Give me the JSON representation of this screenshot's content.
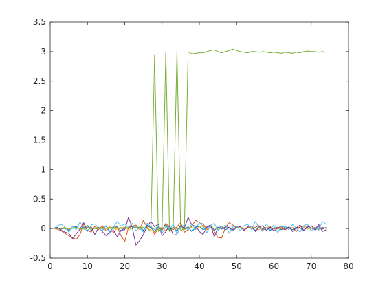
{
  "chart_data": {
    "type": "line",
    "title": "",
    "xlabel": "",
    "ylabel": "",
    "xlim": [
      0,
      80
    ],
    "ylim": [
      -0.5,
      3.5
    ],
    "xticks": [
      0,
      10,
      20,
      30,
      40,
      50,
      60,
      70,
      80
    ],
    "yticks": [
      -0.5,
      0,
      0.5,
      1,
      1.5,
      2,
      2.5,
      3,
      3.5
    ],
    "xtick_labels": [
      "0",
      "10",
      "20",
      "30",
      "40",
      "50",
      "60",
      "70",
      "80"
    ],
    "ytick_labels": [
      "-0.5",
      "0",
      "0.5",
      "1",
      "1.5",
      "2",
      "2.5",
      "3",
      "3.5"
    ],
    "grid": false,
    "legend": "none",
    "series": [
      {
        "color": "#0072bd",
        "x": [
          1,
          2,
          3,
          4,
          5,
          6,
          7,
          8,
          9,
          10,
          11,
          12,
          13,
          14,
          15,
          16,
          17,
          18,
          19,
          20,
          21,
          22,
          23,
          24,
          25,
          26,
          27,
          28,
          29,
          30,
          31,
          32,
          33,
          34,
          35,
          36,
          37,
          38,
          39,
          40,
          41,
          42,
          43,
          44,
          45,
          46,
          47,
          48,
          49,
          50,
          51,
          52,
          53,
          54,
          55,
          56,
          57,
          58,
          59,
          60,
          61,
          62,
          63,
          64,
          65,
          66,
          67,
          68,
          69,
          70,
          71,
          72,
          73,
          74
        ],
        "y": [
          0,
          0.01,
          -0.01,
          0.02,
          -0.03,
          0.01,
          0.04,
          -0.02,
          0.02,
          0.05,
          -0.03,
          0.01,
          0.02,
          -0.01,
          0.04,
          -0.05,
          0.02,
          0.03,
          -0.04,
          0.02,
          0.01,
          0.04,
          0.01,
          0.02,
          -0.03,
          0.06,
          0.01,
          -0.05,
          0.03,
          -0.02,
          0.07,
          -0.03,
          0.02,
          -0.04,
          0.06,
          -0.01,
          0.03,
          -0.05,
          0.02,
          0.04,
          -0.02,
          0.01,
          0.05,
          -0.03,
          0.02,
          0.03,
          -0.02,
          0.01,
          -0.04,
          0.02,
          0.01,
          -0.02,
          0.03,
          0.01,
          -0.03,
          0.04,
          -0.01,
          0.02,
          -0.03,
          0.01,
          0.02,
          -0.02,
          0.03,
          0.01,
          -0.02,
          0.02,
          0.01,
          -0.03,
          0.04,
          0.01,
          -0.02,
          0.03,
          -0.01,
          0.02
        ]
      },
      {
        "color": "#d95319",
        "x": [
          1,
          2,
          3,
          4,
          5,
          6,
          7,
          8,
          9,
          10,
          11,
          12,
          13,
          14,
          15,
          16,
          17,
          18,
          19,
          20,
          21,
          22,
          23,
          24,
          25,
          26,
          27,
          28,
          29,
          30,
          31,
          32,
          33,
          34,
          35,
          36,
          37,
          38,
          39,
          40,
          41,
          42,
          43,
          44,
          45,
          46,
          47,
          48,
          49,
          50,
          51,
          52,
          53,
          54,
          55,
          56,
          57,
          58,
          59,
          60,
          61,
          62,
          63,
          64,
          65,
          66,
          67,
          68,
          69,
          70,
          71,
          72,
          73,
          74
        ],
        "y": [
          0,
          -0.01,
          -0.04,
          -0.08,
          -0.12,
          -0.16,
          -0.18,
          -0.1,
          0.08,
          -0.03,
          -0.06,
          0.04,
          -0.02,
          0.05,
          -0.04,
          0.02,
          -0.07,
          0.03,
          -0.12,
          -0.22,
          0.02,
          0.04,
          0.06,
          -0.02,
          0.14,
          0.02,
          0.05,
          -0.1,
          0.01,
          -0.03,
          0.09,
          0.02,
          -0.02,
          0.03,
          0.1,
          -0.06,
          -0.02,
          0.04,
          0.14,
          0.1,
          0.08,
          -0.02,
          0.02,
          -0.05,
          -0.15,
          -0.16,
          0.02,
          0.1,
          0.06,
          0.01,
          0.03,
          -0.02,
          0.03,
          0.01,
          0.02,
          0.05,
          -0.03,
          0.01,
          0.03,
          -0.01,
          0.02,
          0,
          -0.02,
          0.02,
          0.01,
          -0.05,
          0.04,
          0.02,
          0.05,
          0.01,
          -0.01,
          -0.01,
          0.02,
          0
        ]
      },
      {
        "color": "#edb120",
        "x": [
          1,
          2,
          3,
          4,
          5,
          6,
          7,
          8,
          9,
          10,
          11,
          12,
          13,
          14,
          15,
          16,
          17,
          18,
          19,
          20,
          21,
          22,
          23,
          24,
          25,
          26,
          27,
          28,
          29,
          30,
          31,
          32,
          33,
          34,
          35,
          36,
          37,
          38,
          39,
          40,
          41,
          42,
          43,
          44,
          45,
          46,
          47,
          48,
          49,
          50,
          51,
          52,
          53,
          54,
          55,
          56,
          57,
          58,
          59,
          60,
          61,
          62,
          63,
          64,
          65,
          66,
          67,
          68,
          69,
          70,
          71,
          72,
          73,
          74
        ],
        "y": [
          0,
          0.01,
          0,
          0.02,
          -0.01,
          0.01,
          0.02,
          -0.01,
          0,
          0.03,
          -0.02,
          0.01,
          0.02,
          -0.01,
          0.01,
          0.03,
          0,
          -0.01,
          0.02,
          0.01,
          -0.02,
          0.01,
          0.03,
          -0.02,
          0.01,
          0.02,
          -0.03,
          -0.06,
          0.01,
          0.02,
          -0.04,
          0.02,
          0.01,
          -0.01,
          0.03,
          -0.02,
          0.01,
          0.02,
          -0.01,
          0.03,
          0.04,
          -0.01,
          0.02,
          0.01,
          -0.02,
          0.03,
          0.01,
          0.02,
          -0.01,
          0.01,
          0.02,
          -0.01,
          0.01,
          0.02,
          0.01,
          -0.02,
          0.01,
          0.02,
          0,
          0.01,
          -0.01,
          0.02,
          0.01,
          -0.01,
          0.02,
          0,
          0.01,
          0.02,
          -0.01,
          0.01,
          0.02,
          0,
          0.01,
          0
        ]
      },
      {
        "color": "#7e2f8e",
        "x": [
          1,
          2,
          3,
          4,
          5,
          6,
          7,
          8,
          9,
          10,
          11,
          12,
          13,
          14,
          15,
          16,
          17,
          18,
          19,
          20,
          21,
          22,
          23,
          24,
          25,
          26,
          27,
          28,
          29,
          30,
          31,
          32,
          33,
          34,
          35,
          36,
          37,
          38,
          39,
          40,
          41,
          42,
          43,
          44,
          45,
          46,
          47,
          48,
          49,
          50,
          51,
          52,
          53,
          54,
          55,
          56,
          57,
          58,
          59,
          60,
          61,
          62,
          63,
          64,
          65,
          66,
          67,
          68,
          69,
          70,
          71,
          72,
          73,
          74
        ],
        "y": [
          0,
          0.02,
          -0.03,
          -0.06,
          -0.08,
          -0.17,
          -0.09,
          -0.01,
          0.1,
          -0.04,
          0.03,
          -0.1,
          0.02,
          -0.05,
          -0.12,
          -0.06,
          -0.03,
          -0.14,
          -0.03,
          -0.02,
          0.19,
          0.02,
          -0.28,
          -0.2,
          -0.1,
          0.04,
          0.12,
          0.03,
          0.08,
          -0.12,
          -0.05,
          0.06,
          -0.11,
          -0.1,
          0.04,
          0.01,
          0.19,
          0.06,
          0.04,
          -0.05,
          -0.1,
          0.03,
          0.06,
          -0.14,
          0.02,
          -0.01,
          0.03,
          0.02,
          -0.02,
          0.04,
          0.03,
          -0.03,
          0.02,
          0.04,
          -0.05,
          0.02,
          0.05,
          -0.03,
          0.02,
          -0.04,
          0.01,
          0.04,
          -0.02,
          0.03,
          -0.05,
          0.01,
          0.06,
          -0.03,
          0.02,
          0.05,
          -0.02,
          0.07,
          -0.05,
          -0.02
        ]
      },
      {
        "color": "#77ac30",
        "x": [
          1,
          2,
          3,
          4,
          5,
          6,
          7,
          8,
          9,
          10,
          11,
          12,
          13,
          14,
          15,
          16,
          17,
          18,
          19,
          20,
          21,
          22,
          23,
          24,
          25,
          26,
          27,
          28,
          29,
          30,
          31,
          32,
          33,
          34,
          35,
          36,
          37,
          38,
          39,
          40,
          41,
          42,
          43,
          44,
          45,
          46,
          47,
          48,
          49,
          50,
          51,
          52,
          53,
          54,
          55,
          56,
          57,
          58,
          59,
          60,
          61,
          62,
          63,
          64,
          65,
          66,
          67,
          68,
          69,
          70,
          71,
          72,
          73,
          74
        ],
        "y": [
          0,
          0,
          0.01,
          -0.01,
          0.01,
          0,
          0.02,
          0,
          -0.01,
          0.02,
          0.01,
          0,
          -0.01,
          0.02,
          0,
          0.01,
          0.03,
          0.01,
          0,
          0.02,
          0.01,
          0,
          0.03,
          0.02,
          0.02,
          0,
          -0.05,
          2.94,
          -0.05,
          0.01,
          3.0,
          -0.05,
          0.02,
          3.0,
          -0.04,
          0.01,
          3.0,
          2.96,
          2.97,
          2.98,
          2.98,
          3.0,
          3.02,
          3.03,
          3.0,
          2.98,
          3.0,
          3.02,
          3.04,
          3.02,
          3.0,
          2.99,
          2.98,
          3.0,
          3.0,
          2.99,
          3.0,
          2.99,
          2.98,
          2.99,
          2.98,
          2.97,
          2.99,
          2.98,
          2.97,
          2.99,
          2.98,
          3.0,
          3.01,
          3.0,
          3.0,
          2.99,
          3.0,
          2.99
        ]
      },
      {
        "color": "#4dbeee",
        "x": [
          1,
          2,
          3,
          4,
          5,
          6,
          7,
          8,
          9,
          10,
          11,
          12,
          13,
          14,
          15,
          16,
          17,
          18,
          19,
          20,
          21,
          22,
          23,
          24,
          25,
          26,
          27,
          28,
          29,
          30,
          31,
          32,
          33,
          34,
          35,
          36,
          37,
          38,
          39,
          40,
          41,
          42,
          43,
          44,
          45,
          46,
          47,
          48,
          49,
          50,
          51,
          52,
          53,
          54,
          55,
          56,
          57,
          58,
          59,
          60,
          61,
          62,
          63,
          64,
          65,
          66,
          67,
          68,
          69,
          70,
          71,
          72,
          73,
          74
        ],
        "y": [
          0,
          0.05,
          0.07,
          0.02,
          -0.06,
          0.04,
          -0.02,
          0.11,
          0.02,
          -0.05,
          0.06,
          0.08,
          0.01,
          -0.04,
          0.05,
          -0.08,
          0.03,
          0.12,
          0.04,
          0.08,
          0.02,
          0.09,
          -0.04,
          0.02,
          -0.06,
          0.09,
          0.03,
          -0.02,
          0.06,
          -0.08,
          0.04,
          -0.01,
          0.07,
          -0.09,
          0.03,
          0.06,
          -0.03,
          0.08,
          -0.02,
          0.11,
          0.04,
          -0.07,
          0.05,
          0.09,
          -0.03,
          0.02,
          0.06,
          -0.08,
          0.03,
          0.04,
          -0.04,
          0.05,
          0.07,
          -0.02,
          0.12,
          0.02,
          -0.05,
          0.08,
          -0.01,
          0.06,
          -0.07,
          0.04,
          0.03,
          -0.02,
          0.07,
          0.01,
          -0.06,
          0.05,
          0.08,
          -0.04,
          0.02,
          -0.03,
          0.12,
          0.07
        ]
      }
    ]
  }
}
